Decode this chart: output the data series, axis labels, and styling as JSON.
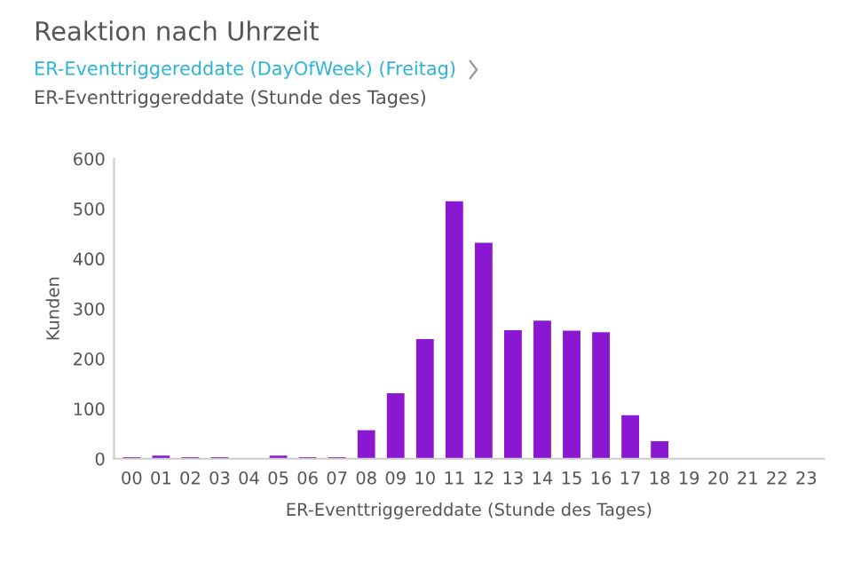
{
  "chart_data": {
    "type": "bar",
    "title": "Reaktion nach Uhrzeit",
    "subtitle": "ER-Eventtriggereddate (DayOfWeek) (Freitag)",
    "annotations": [
      "ER-Eventtriggereddate (Stunde des Tages)"
    ],
    "xlabel": "ER-Eventtriggereddate (Stunde des Tages)",
    "ylabel": "Kunden",
    "categories": [
      "00",
      "01",
      "02",
      "03",
      "04",
      "05",
      "06",
      "07",
      "08",
      "09",
      "10",
      "11",
      "12",
      "13",
      "14",
      "15",
      "16",
      "17",
      "18",
      "19",
      "20",
      "21",
      "22",
      "23"
    ],
    "values": [
      3,
      6,
      3,
      3,
      0,
      6,
      3,
      3,
      57,
      131,
      239,
      515,
      432,
      257,
      276,
      256,
      253,
      87,
      35,
      0,
      0,
      0,
      0,
      0
    ],
    "color": "#8a17d1",
    "ylim": [
      0,
      600
    ],
    "yticks": [
      0,
      100,
      200,
      300,
      400,
      500,
      600
    ],
    "grid": false,
    "legend": false
  }
}
